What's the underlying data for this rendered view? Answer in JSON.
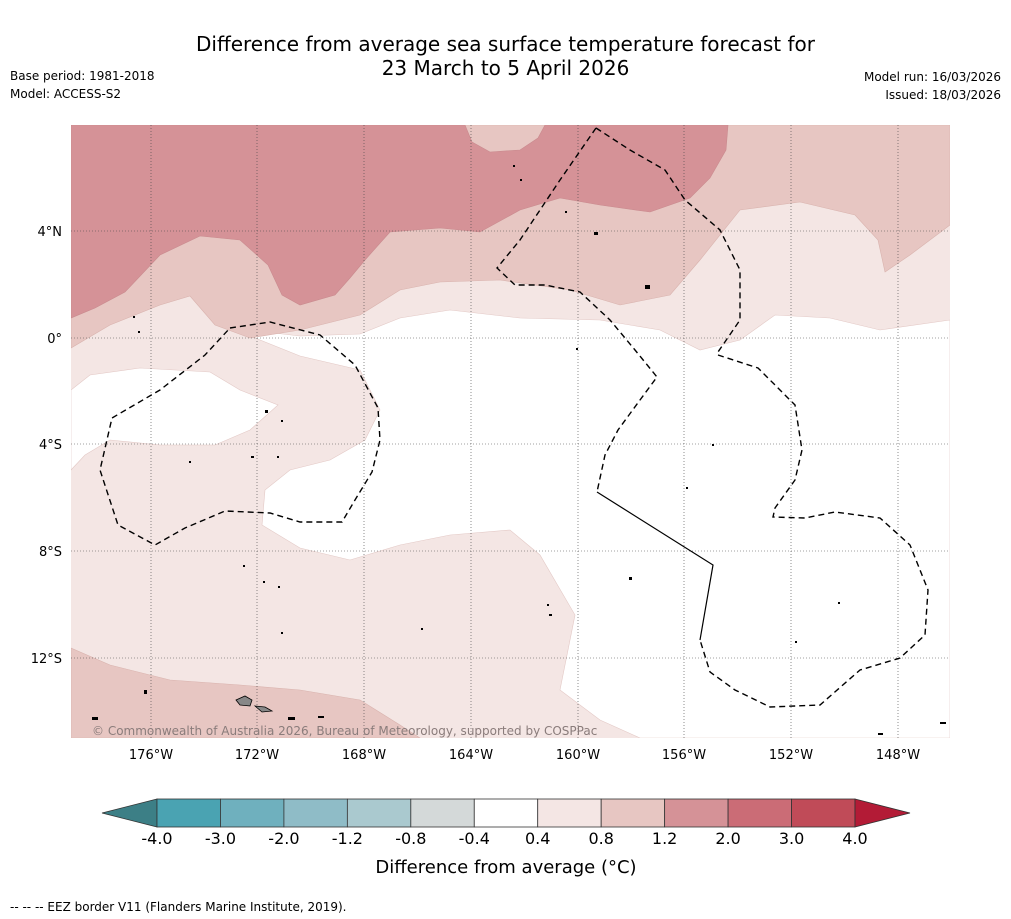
{
  "header": {
    "title_line1": "Difference from average sea surface temperature forecast for",
    "title_line2": "23 March to 5 April 2026",
    "base_period": "Base period: 1981-2018",
    "model": "Model: ACCESS-S2",
    "model_run": "Model run: 16/03/2026",
    "issued": "Issued: 18/03/2026"
  },
  "map": {
    "lat_labels": [
      "4°N",
      "0°",
      "4°S",
      "8°S",
      "12°S"
    ],
    "lon_labels": [
      "176°W",
      "172°W",
      "168°W",
      "164°W",
      "160°W",
      "156°W",
      "152°W",
      "148°W"
    ],
    "copyright": "© Commonwealth of Australia 2026, Bureau of Meteorology, supported by COSPPac"
  },
  "colorbar": {
    "ticks": [
      "-4.0",
      "-3.0",
      "-2.0",
      "-1.2",
      "-0.8",
      "-0.4",
      "0.4",
      "0.8",
      "1.2",
      "2.0",
      "3.0",
      "4.0"
    ],
    "colors": [
      "#4aa3b2",
      "#6fb0be",
      "#8fbcc7",
      "#aac9cf",
      "#d4d9d9",
      "#ffffff",
      "#f4e6e4",
      "#e7c6c2",
      "#d59297",
      "#cb6c76",
      "#c04b58"
    ],
    "under_color": "#3c7f86",
    "over_color": "#b31b36",
    "label": "Difference from average (°C)"
  },
  "footer": {
    "eez_note": "--  --  -- EEZ border V11 (Flanders Marine Institute, 2019)."
  }
}
